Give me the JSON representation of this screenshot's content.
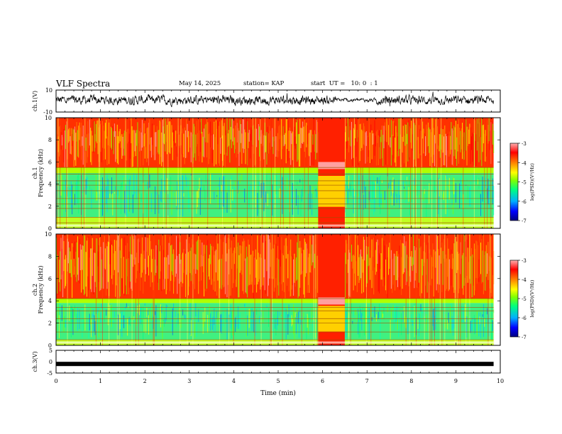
{
  "header": {
    "title": "VLF Spectra",
    "date": "May 14, 2025",
    "station": "station= KAP",
    "start": "start  UT =   10: 0  : 1"
  },
  "chart_data": [
    {
      "type": "line",
      "panel": "ch1-waveform",
      "ylabel": "ch.1(V)",
      "ytick_labels": [
        "10",
        "-10"
      ],
      "ylim": [
        -10,
        10
      ],
      "xlim": [
        0,
        10
      ],
      "note_series": "noisy waveform, amplitude roughly -3 to 4 V over 0–9.85 min, quieter near 6.3–7.2 min",
      "color": "#000000"
    },
    {
      "type": "heatmap",
      "panel": "ch1-spectrogram",
      "ylabel": "Frequency (kHz)",
      "panel_label": "ch.1",
      "yticks": [
        0,
        2,
        4,
        6,
        8,
        10
      ],
      "ylim": [
        0,
        10
      ],
      "xlim": [
        0,
        10
      ],
      "data_end_min": 9.85,
      "bands_khz": [
        0.5,
        1.0,
        1.8,
        2.2,
        2.7,
        3.4,
        3.9,
        4.3,
        4.9,
        5.5
      ],
      "high_level_region_khz": [
        5.5,
        10
      ],
      "low_level_region_khz": [
        1.0,
        5.0
      ],
      "anomaly_min": [
        5.9,
        6.5
      ],
      "colorbar": {
        "label": "log(PSD)(V²/Hz)",
        "ticks": [
          "-3",
          "-4",
          "-5",
          "-6",
          "-7"
        ],
        "range": [
          -7,
          -3
        ],
        "colors": [
          "#000080",
          "#0000ff",
          "#00b0ff",
          "#00ff80",
          "#80ff00",
          "#ffff00",
          "#ff8000",
          "#ff0000",
          "#ffb0b0"
        ]
      }
    },
    {
      "type": "heatmap",
      "panel": "ch2-spectrogram",
      "ylabel": "Frequency (kHz)",
      "panel_label": "ch.2",
      "yticks": [
        0,
        2,
        4,
        6,
        8,
        10
      ],
      "ylim": [
        0,
        10
      ],
      "xlim": [
        0,
        10
      ],
      "data_end_min": 9.85,
      "bands_khz": [
        0.5,
        1.2,
        2.0,
        2.4,
        3.1,
        3.4,
        4.2
      ],
      "high_level_region_khz": [
        4.2,
        10
      ],
      "low_level_region_khz": [
        0.5,
        3.8
      ],
      "anomaly_min": [
        5.9,
        6.5
      ],
      "colorbar": {
        "label": "log(PSD)(V²/Hz)",
        "ticks": [
          "-3",
          "-4",
          "-5",
          "-6",
          "-7"
        ],
        "range": [
          -7,
          -3
        ],
        "colors": [
          "#000080",
          "#0000ff",
          "#00b0ff",
          "#00ff80",
          "#80ff00",
          "#ffff00",
          "#ff8000",
          "#ff0000",
          "#ffb0b0"
        ]
      }
    },
    {
      "type": "line",
      "panel": "ch3-waveform",
      "ylabel": "ch.3(V)",
      "ytick_labels": [
        "5",
        "0",
        "-5"
      ],
      "ylim": [
        -5,
        5
      ],
      "xlim": [
        0,
        10
      ],
      "xlabel": "Time  (min)",
      "xticks": [
        0,
        1,
        2,
        3,
        4,
        5,
        6,
        7,
        8,
        9,
        10
      ],
      "note_series": "nearly constant thick band at about -1 V from 0 to 9.85 min",
      "value": -1,
      "color": "#000000"
    }
  ]
}
